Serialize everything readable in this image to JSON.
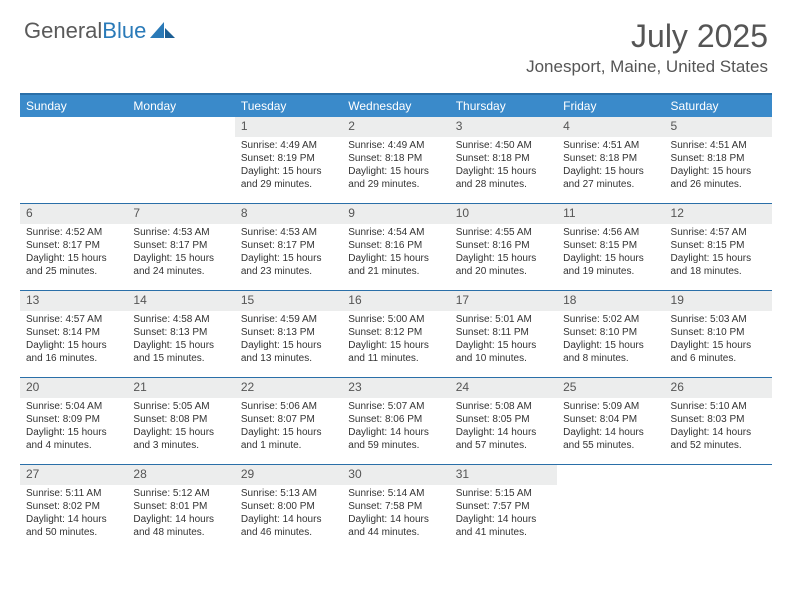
{
  "brand": {
    "name_a": "General",
    "name_b": "Blue"
  },
  "title": "July 2025",
  "subtitle": "Jonesport, Maine, United States",
  "colors": {
    "header_bar": "#3a8aca",
    "rule": "#2a6fa8",
    "daynum_bg": "#eceded",
    "text": "#333333",
    "title_text": "#555555"
  },
  "typography": {
    "title_fontsize": 32,
    "subtitle_fontsize": 17,
    "dow_fontsize": 12,
    "daynum_fontsize": 12,
    "body_fontsize": 10
  },
  "dow": [
    "Sunday",
    "Monday",
    "Tuesday",
    "Wednesday",
    "Thursday",
    "Friday",
    "Saturday"
  ],
  "weeks": [
    [
      {
        "n": "",
        "sr": "",
        "ss": "",
        "dl": ""
      },
      {
        "n": "",
        "sr": "",
        "ss": "",
        "dl": ""
      },
      {
        "n": "1",
        "sr": "Sunrise: 4:49 AM",
        "ss": "Sunset: 8:19 PM",
        "dl": "Daylight: 15 hours and 29 minutes."
      },
      {
        "n": "2",
        "sr": "Sunrise: 4:49 AM",
        "ss": "Sunset: 8:18 PM",
        "dl": "Daylight: 15 hours and 29 minutes."
      },
      {
        "n": "3",
        "sr": "Sunrise: 4:50 AM",
        "ss": "Sunset: 8:18 PM",
        "dl": "Daylight: 15 hours and 28 minutes."
      },
      {
        "n": "4",
        "sr": "Sunrise: 4:51 AM",
        "ss": "Sunset: 8:18 PM",
        "dl": "Daylight: 15 hours and 27 minutes."
      },
      {
        "n": "5",
        "sr": "Sunrise: 4:51 AM",
        "ss": "Sunset: 8:18 PM",
        "dl": "Daylight: 15 hours and 26 minutes."
      }
    ],
    [
      {
        "n": "6",
        "sr": "Sunrise: 4:52 AM",
        "ss": "Sunset: 8:17 PM",
        "dl": "Daylight: 15 hours and 25 minutes."
      },
      {
        "n": "7",
        "sr": "Sunrise: 4:53 AM",
        "ss": "Sunset: 8:17 PM",
        "dl": "Daylight: 15 hours and 24 minutes."
      },
      {
        "n": "8",
        "sr": "Sunrise: 4:53 AM",
        "ss": "Sunset: 8:17 PM",
        "dl": "Daylight: 15 hours and 23 minutes."
      },
      {
        "n": "9",
        "sr": "Sunrise: 4:54 AM",
        "ss": "Sunset: 8:16 PM",
        "dl": "Daylight: 15 hours and 21 minutes."
      },
      {
        "n": "10",
        "sr": "Sunrise: 4:55 AM",
        "ss": "Sunset: 8:16 PM",
        "dl": "Daylight: 15 hours and 20 minutes."
      },
      {
        "n": "11",
        "sr": "Sunrise: 4:56 AM",
        "ss": "Sunset: 8:15 PM",
        "dl": "Daylight: 15 hours and 19 minutes."
      },
      {
        "n": "12",
        "sr": "Sunrise: 4:57 AM",
        "ss": "Sunset: 8:15 PM",
        "dl": "Daylight: 15 hours and 18 minutes."
      }
    ],
    [
      {
        "n": "13",
        "sr": "Sunrise: 4:57 AM",
        "ss": "Sunset: 8:14 PM",
        "dl": "Daylight: 15 hours and 16 minutes."
      },
      {
        "n": "14",
        "sr": "Sunrise: 4:58 AM",
        "ss": "Sunset: 8:13 PM",
        "dl": "Daylight: 15 hours and 15 minutes."
      },
      {
        "n": "15",
        "sr": "Sunrise: 4:59 AM",
        "ss": "Sunset: 8:13 PM",
        "dl": "Daylight: 15 hours and 13 minutes."
      },
      {
        "n": "16",
        "sr": "Sunrise: 5:00 AM",
        "ss": "Sunset: 8:12 PM",
        "dl": "Daylight: 15 hours and 11 minutes."
      },
      {
        "n": "17",
        "sr": "Sunrise: 5:01 AM",
        "ss": "Sunset: 8:11 PM",
        "dl": "Daylight: 15 hours and 10 minutes."
      },
      {
        "n": "18",
        "sr": "Sunrise: 5:02 AM",
        "ss": "Sunset: 8:10 PM",
        "dl": "Daylight: 15 hours and 8 minutes."
      },
      {
        "n": "19",
        "sr": "Sunrise: 5:03 AM",
        "ss": "Sunset: 8:10 PM",
        "dl": "Daylight: 15 hours and 6 minutes."
      }
    ],
    [
      {
        "n": "20",
        "sr": "Sunrise: 5:04 AM",
        "ss": "Sunset: 8:09 PM",
        "dl": "Daylight: 15 hours and 4 minutes."
      },
      {
        "n": "21",
        "sr": "Sunrise: 5:05 AM",
        "ss": "Sunset: 8:08 PM",
        "dl": "Daylight: 15 hours and 3 minutes."
      },
      {
        "n": "22",
        "sr": "Sunrise: 5:06 AM",
        "ss": "Sunset: 8:07 PM",
        "dl": "Daylight: 15 hours and 1 minute."
      },
      {
        "n": "23",
        "sr": "Sunrise: 5:07 AM",
        "ss": "Sunset: 8:06 PM",
        "dl": "Daylight: 14 hours and 59 minutes."
      },
      {
        "n": "24",
        "sr": "Sunrise: 5:08 AM",
        "ss": "Sunset: 8:05 PM",
        "dl": "Daylight: 14 hours and 57 minutes."
      },
      {
        "n": "25",
        "sr": "Sunrise: 5:09 AM",
        "ss": "Sunset: 8:04 PM",
        "dl": "Daylight: 14 hours and 55 minutes."
      },
      {
        "n": "26",
        "sr": "Sunrise: 5:10 AM",
        "ss": "Sunset: 8:03 PM",
        "dl": "Daylight: 14 hours and 52 minutes."
      }
    ],
    [
      {
        "n": "27",
        "sr": "Sunrise: 5:11 AM",
        "ss": "Sunset: 8:02 PM",
        "dl": "Daylight: 14 hours and 50 minutes."
      },
      {
        "n": "28",
        "sr": "Sunrise: 5:12 AM",
        "ss": "Sunset: 8:01 PM",
        "dl": "Daylight: 14 hours and 48 minutes."
      },
      {
        "n": "29",
        "sr": "Sunrise: 5:13 AM",
        "ss": "Sunset: 8:00 PM",
        "dl": "Daylight: 14 hours and 46 minutes."
      },
      {
        "n": "30",
        "sr": "Sunrise: 5:14 AM",
        "ss": "Sunset: 7:58 PM",
        "dl": "Daylight: 14 hours and 44 minutes."
      },
      {
        "n": "31",
        "sr": "Sunrise: 5:15 AM",
        "ss": "Sunset: 7:57 PM",
        "dl": "Daylight: 14 hours and 41 minutes."
      },
      {
        "n": "",
        "sr": "",
        "ss": "",
        "dl": ""
      },
      {
        "n": "",
        "sr": "",
        "ss": "",
        "dl": ""
      }
    ]
  ]
}
